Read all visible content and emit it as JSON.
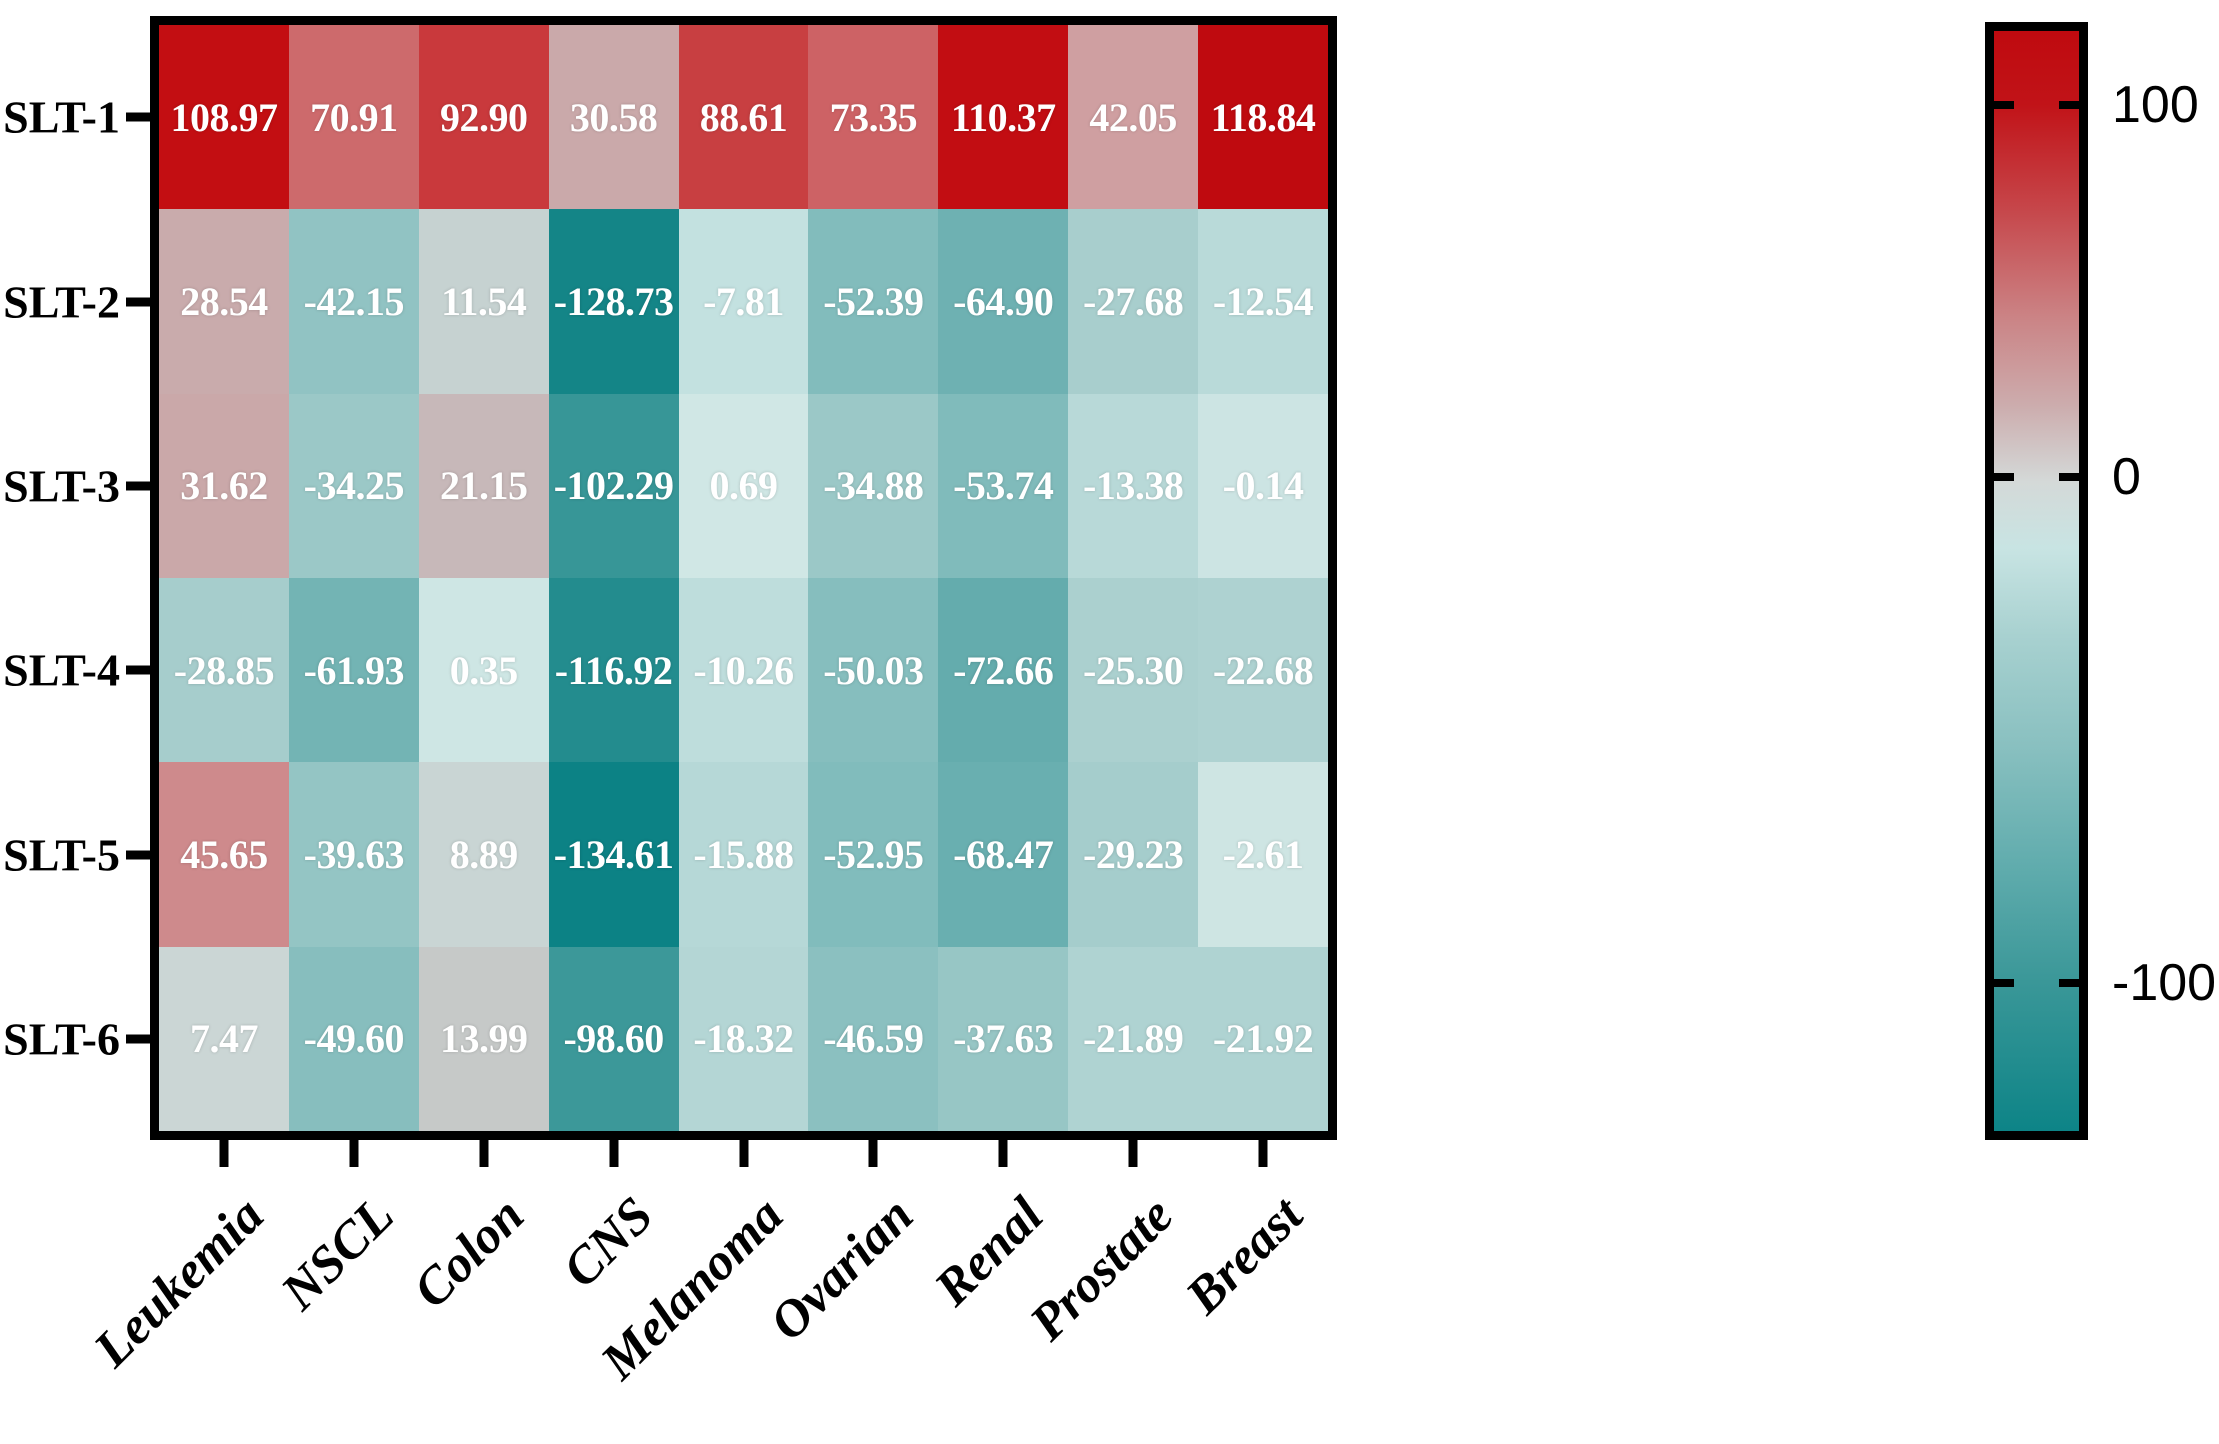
{
  "chart_data": {
    "type": "heatmap",
    "title": "",
    "rows": [
      "SLT-1",
      "SLT-2",
      "SLT-3",
      "SLT-4",
      "SLT-5",
      "SLT-6"
    ],
    "columns": [
      "Leukemia",
      "NSCL",
      "Colon",
      "CNS",
      "Melanoma",
      "Ovarian",
      "Renal",
      "Prostate",
      "Breast"
    ],
    "values": [
      [
        108.97,
        70.91,
        92.9,
        30.58,
        88.61,
        73.35,
        110.37,
        42.05,
        118.84
      ],
      [
        28.54,
        -42.15,
        11.54,
        -128.73,
        -7.81,
        -52.39,
        -64.9,
        -27.68,
        -12.54
      ],
      [
        31.62,
        -34.25,
        21.15,
        -102.29,
        0.69,
        -34.88,
        -53.74,
        -13.38,
        -0.14
      ],
      [
        -28.85,
        -61.93,
        0.35,
        -116.92,
        -10.26,
        -50.03,
        -72.66,
        -25.3,
        -22.68
      ],
      [
        45.65,
        -39.63,
        8.89,
        -134.61,
        -15.88,
        -52.95,
        -68.47,
        -29.23,
        -2.61
      ],
      [
        7.47,
        -49.6,
        13.99,
        -98.6,
        -18.32,
        -46.59,
        -37.63,
        -21.89,
        -21.92
      ]
    ],
    "decimals": 2,
    "value_range": [
      -134.61,
      118.84
    ],
    "grid": false,
    "legend_position": "right",
    "colors": {
      "background": "#ffffff",
      "frame": "#000000",
      "cell_text": "#ffffff",
      "max_red": "#bf0a0f",
      "neutral": "#c6c9c8",
      "min_teal": "#0c8285"
    },
    "colormap_stops": [
      [
        118.84,
        "#bf0a0f"
      ],
      [
        109.0,
        "#c30e12"
      ],
      [
        93.0,
        "#c9393c"
      ],
      [
        88.6,
        "#c83f41"
      ],
      [
        73.4,
        "#cd6265"
      ],
      [
        70.9,
        "#cd6a6c"
      ],
      [
        45.7,
        "#ce8a8c"
      ],
      [
        42.1,
        "#cf9fa1"
      ],
      [
        31.6,
        "#caa8a9"
      ],
      [
        28.5,
        "#c9abac"
      ],
      [
        21.2,
        "#c7b8b9"
      ],
      [
        14.0,
        "#c6c9c8"
      ],
      [
        11.5,
        "#c6d2d1"
      ],
      [
        7.5,
        "#cbd6d5"
      ],
      [
        0.7,
        "#d0e7e5"
      ],
      [
        -0.2,
        "#cce4e3"
      ],
      [
        -2.6,
        "#cee5e3"
      ],
      [
        -7.8,
        "#c3e1e0"
      ],
      [
        -12.5,
        "#b9dad9"
      ],
      [
        -18.3,
        "#b4d6d5"
      ],
      [
        -22.0,
        "#afd3d2"
      ],
      [
        -27.7,
        "#a8cecd"
      ],
      [
        -34.5,
        "#9bc8c7"
      ],
      [
        -42.2,
        "#91c3c3"
      ],
      [
        -50.0,
        "#86bebe"
      ],
      [
        -62.0,
        "#73b4b4"
      ],
      [
        -64.9,
        "#6eb1b2"
      ],
      [
        -72.7,
        "#64acad"
      ],
      [
        -98.6,
        "#3c9899"
      ],
      [
        -102.3,
        "#379697"
      ],
      [
        -116.9,
        "#238c8e"
      ],
      [
        -128.7,
        "#148587"
      ],
      [
        -134.61,
        "#0c8285"
      ]
    ],
    "colorbar": {
      "ticks": [
        {
          "label": "100",
          "pos_pct": 6.7
        },
        {
          "label": "0",
          "pos_pct": 40.5
        },
        {
          "label": "-100",
          "pos_pct": 86.5
        }
      ],
      "gradient": [
        [
          0,
          "#bf0a0f"
        ],
        [
          6.7,
          "#c11318"
        ],
        [
          16,
          "#c64549"
        ],
        [
          26,
          "#cb8385"
        ],
        [
          34,
          "#ccacad"
        ],
        [
          41,
          "#d4d9d8"
        ],
        [
          47,
          "#c8e4e3"
        ],
        [
          55,
          "#a8d1d0"
        ],
        [
          65,
          "#89c0c0"
        ],
        [
          76,
          "#60acad"
        ],
        [
          86.5,
          "#3a9798"
        ],
        [
          100,
          "#0d8487"
        ]
      ]
    }
  }
}
